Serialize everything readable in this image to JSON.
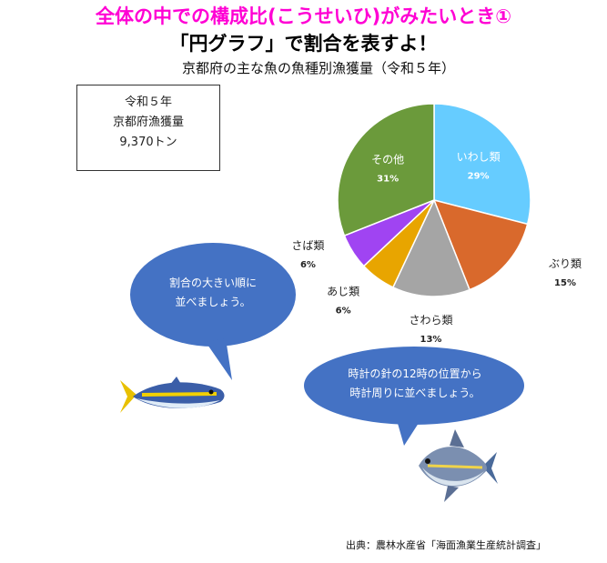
{
  "header": {
    "title": "全体の中での構成比(こうせいひ)がみたいとき①",
    "subtitle": "「円グラフ」で割合を表すよ！"
  },
  "infobox": {
    "line1": "令和５年",
    "line2": "京都府漁獲量",
    "line3": "9,370トン"
  },
  "bubbles": {
    "left": {
      "line1": "割合の大きい順に",
      "line2": "並べましょう。"
    },
    "right": {
      "line1": "時計の針の12時の位置から",
      "line2": "時計周りに並べましょう。"
    }
  },
  "source": "出典：農林水産省「海面漁業生産統計調査」",
  "colors": {
    "title_pink": "#ff00d4",
    "bubble_blue": "#4472c4"
  },
  "chart_data": {
    "type": "pie",
    "title": "京都府の主な魚の魚種別漁獲量（令和５年）",
    "start": "12 o'clock, clockwise",
    "slices": [
      {
        "label": "いわし類",
        "value": 29,
        "pct": "29%",
        "color": "#66ccff"
      },
      {
        "label": "ぶり類",
        "value": 15,
        "pct": "15%",
        "color": "#d9692c"
      },
      {
        "label": "さわら類",
        "value": 13,
        "pct": "13%",
        "color": "#a5a5a5"
      },
      {
        "label": "あじ類",
        "value": 6,
        "pct": "6%",
        "color": "#e8a500"
      },
      {
        "label": "さば類",
        "value": 6,
        "pct": "6%",
        "color": "#a044f2"
      },
      {
        "label": "その他",
        "value": 31,
        "pct": "31%",
        "color": "#6b9a3b"
      }
    ]
  }
}
